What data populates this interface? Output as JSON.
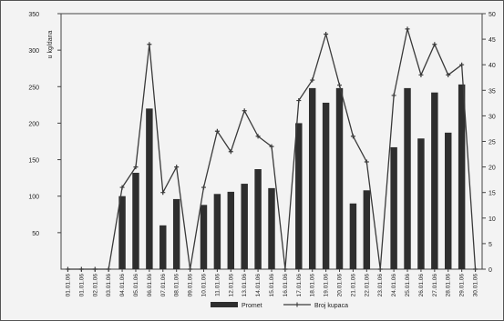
{
  "chart_data": {
    "type": "bar",
    "title": "",
    "xlabel": "",
    "ylabel": "u kg/dana",
    "ylim": [
      0,
      350
    ],
    "y2lim": [
      0,
      50
    ],
    "yticks": [
      50,
      100,
      150,
      200,
      250,
      300,
      350
    ],
    "y2ticks": [
      0,
      5,
      10,
      15,
      20,
      25,
      30,
      35,
      40,
      45,
      50
    ],
    "grid": false,
    "legend_position": "bottom-center",
    "categories": [
      "01.01.06",
      "01.01.06",
      "02.01.06",
      "03.01.06",
      "04.01.06",
      "05.01.06",
      "06.01.06",
      "07.01.06",
      "08.01.06",
      "09.01.06",
      "10.01.06",
      "11.01.06",
      "12.01.06",
      "13.01.06",
      "14.01.06",
      "15.01.06",
      "16.01.06",
      "17.01.06",
      "18.01.06",
      "19.01.06",
      "20.01.06",
      "21.01.06",
      "22.01.06",
      "23.01.06",
      "24.01.06",
      "25.01.06",
      "26.01.06",
      "27.01.06",
      "28.01.06",
      "29.01.06",
      "30.01.06"
    ],
    "series": [
      {
        "name": "Promet",
        "axis": "left",
        "kind": "bar",
        "values": [
          0,
          0,
          0,
          0,
          100,
          132,
          220,
          60,
          96,
          0,
          88,
          103,
          106,
          117,
          137,
          111,
          0,
          200,
          248,
          228,
          248,
          90,
          108,
          0,
          167,
          248,
          179,
          242,
          187,
          253,
          0
        ]
      },
      {
        "name": "Broj kupaca",
        "axis": "right",
        "kind": "line",
        "values": [
          0,
          0,
          0,
          0,
          16,
          20,
          44,
          15,
          20,
          0,
          16,
          27,
          23,
          31,
          26,
          24,
          0,
          33,
          37,
          46,
          36,
          26,
          21,
          0,
          34,
          47,
          38,
          44,
          38,
          40,
          0
        ]
      }
    ]
  },
  "colors": {
    "bar": "#2e2e2e",
    "line": "#3a3a3a",
    "axis": "#444444",
    "text": "#222222"
  }
}
